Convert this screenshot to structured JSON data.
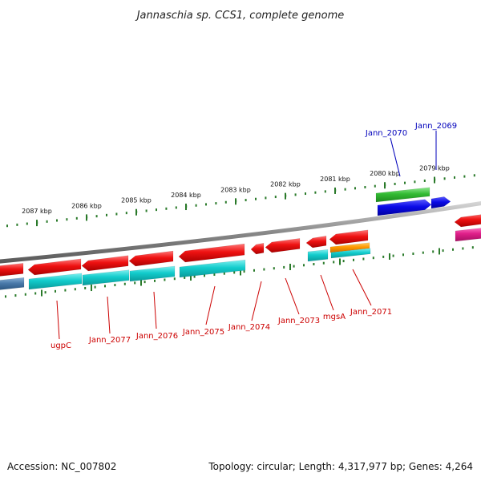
{
  "title": "Jannaschia sp. CCS1, complete genome",
  "footer": {
    "accession": "Accession: NC_007802",
    "summary": "Topology: circular; Length: 4,317,977 bp; Genes: 4,264"
  },
  "scale": {
    "ticks": [
      {
        "label": "2087 kbp",
        "kbp": 2087
      },
      {
        "label": "2086 kbp",
        "kbp": 2086
      },
      {
        "label": "2085 kbp",
        "kbp": 2085
      },
      {
        "label": "2084 kbp",
        "kbp": 2084
      },
      {
        "label": "2083 kbp",
        "kbp": 2083
      },
      {
        "label": "2082 kbp",
        "kbp": 2082
      },
      {
        "label": "2081 kbp",
        "kbp": 2081
      },
      {
        "label": "2080 kbp",
        "kbp": 2080
      },
      {
        "label": "2079 kbp",
        "kbp": 2079
      }
    ]
  },
  "labels": {
    "forward": [
      {
        "name": "Jann_2070",
        "color": "#0000bb"
      },
      {
        "name": "Jann_2069",
        "color": "#0000bb"
      }
    ],
    "reverse": [
      {
        "name": "ugpC",
        "color": "#cc0000"
      },
      {
        "name": "Jann_2077",
        "color": "#cc0000"
      },
      {
        "name": "Jann_2076",
        "color": "#cc0000"
      },
      {
        "name": "Jann_2075",
        "color": "#cc0000"
      },
      {
        "name": "Jann_2074",
        "color": "#cc0000"
      },
      {
        "name": "Jann_2073",
        "color": "#cc0000"
      },
      {
        "name": "mgsA",
        "color": "#cc0000"
      },
      {
        "name": "Jann_2071",
        "color": "#cc0000"
      }
    ]
  },
  "colors": {
    "cds_reverse": "#ee1111",
    "cds_forward": "#0a0ae6",
    "cog_cyan": "#12cccc",
    "cog_green": "#33bb33",
    "cog_orange": "#ff9900",
    "cog_magenta": "#e0208a",
    "cog_steel": "#4a7aaa",
    "backbone": "#8a8a8a",
    "ticks": "#2a7a2a"
  }
}
